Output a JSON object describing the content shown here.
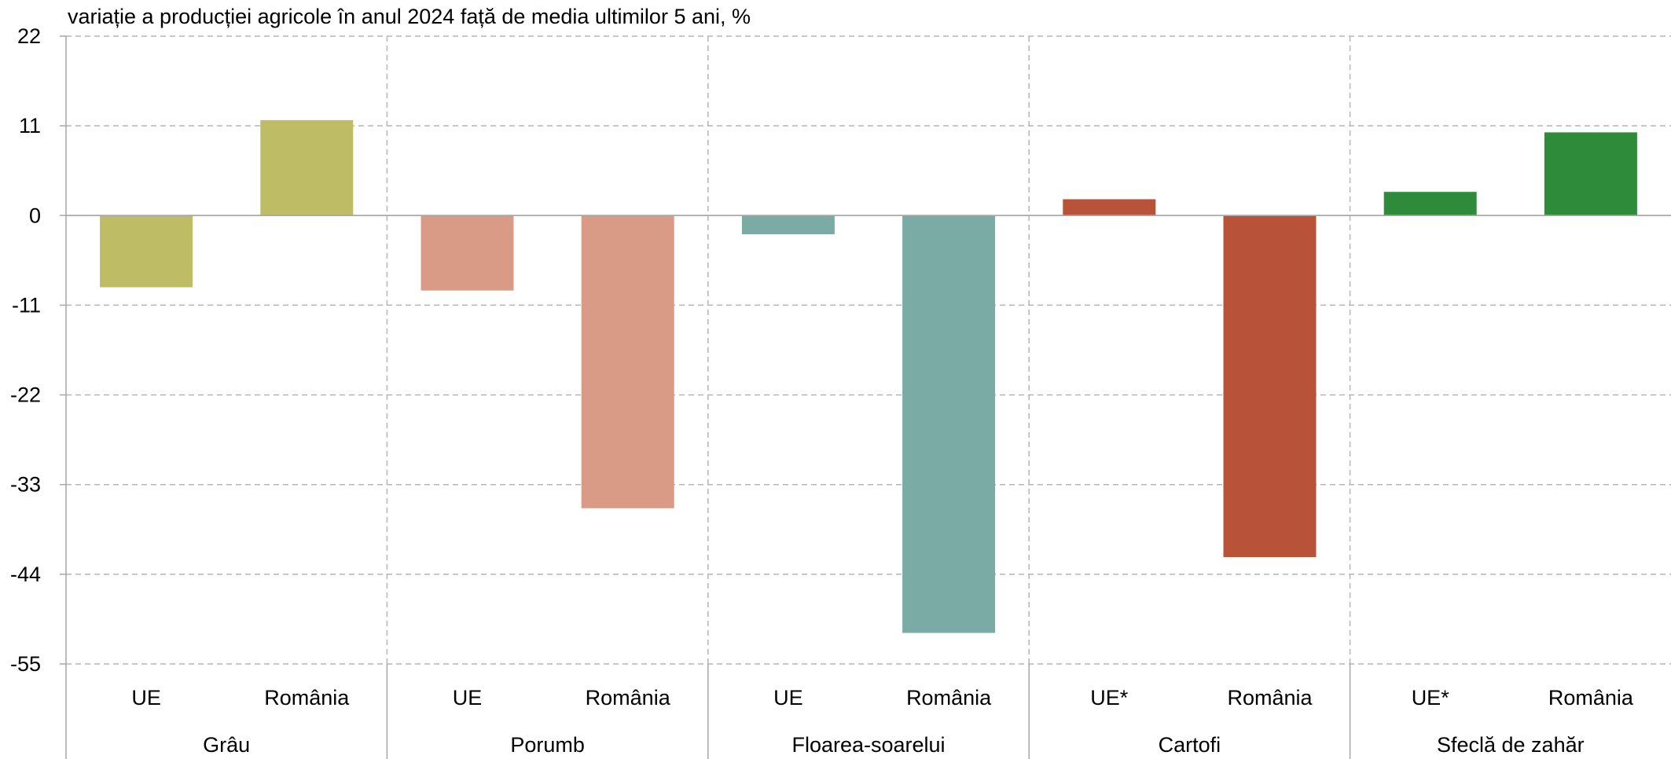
{
  "chart_data": {
    "type": "bar",
    "title": "variație a producției agricole în anul 2024 față de media ultimilor 5 ani, %",
    "xlabel": "",
    "ylabel": "",
    "ylim": [
      -55,
      22
    ],
    "yticks": [
      22,
      11,
      0,
      -11,
      -22,
      -33,
      -44,
      -55
    ],
    "grid": true,
    "groups": [
      {
        "name": "Grâu",
        "color": "#bfbc66",
        "bars": [
          {
            "label": "UE",
            "value": -8.8
          },
          {
            "label": "România",
            "value": 11.7
          }
        ]
      },
      {
        "name": "Porumb",
        "color": "#d99b86",
        "bars": [
          {
            "label": "UE",
            "value": -9.2
          },
          {
            "label": "România",
            "value": -35.9
          }
        ]
      },
      {
        "name": "Floarea-soarelui",
        "color": "#7aaba4",
        "bars": [
          {
            "label": "UE",
            "value": -2.3
          },
          {
            "label": "România",
            "value": -51.2
          }
        ]
      },
      {
        "name": "Cartofi",
        "color": "#b85239",
        "bars": [
          {
            "label": "UE*",
            "value": 2.0
          },
          {
            "label": "România",
            "value": -41.9
          }
        ]
      },
      {
        "name": "Sfeclă de zahăr",
        "color": "#2e8b3a",
        "bars": [
          {
            "label": "UE*",
            "value": 2.9
          },
          {
            "label": "România",
            "value": 10.2
          }
        ]
      }
    ]
  }
}
